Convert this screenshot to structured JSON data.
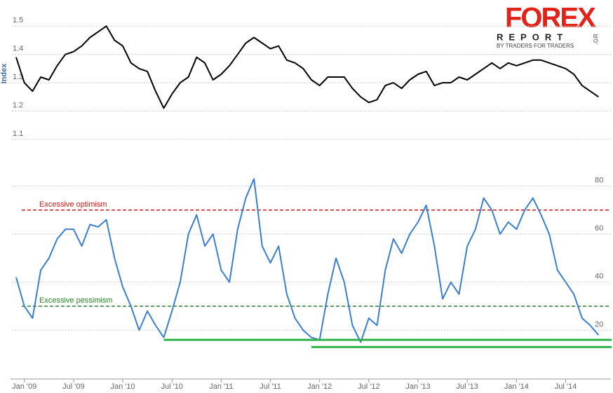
{
  "logo": {
    "title": "FOREX",
    "subtitle": "REPORT",
    "tagline": "BY TRADERS FOR TRADERS",
    "domain": ".GR"
  },
  "chart_data": [
    {
      "type": "line",
      "y_label": "Index",
      "color": "#000000",
      "grid": true,
      "ylim": [
        1.06,
        1.58
      ],
      "yticks": [
        1.1,
        1.2,
        1.3,
        1.4,
        1.5
      ],
      "xlim": [
        "2008-12",
        "2014-12"
      ],
      "x": [
        "2008-12",
        "2009-01",
        "2009-02",
        "2009-03",
        "2009-04",
        "2009-05",
        "2009-06",
        "2009-07",
        "2009-08",
        "2009-09",
        "2009-10",
        "2009-11",
        "2009-12",
        "2010-01",
        "2010-02",
        "2010-03",
        "2010-04",
        "2010-05",
        "2010-06",
        "2010-07",
        "2010-08",
        "2010-09",
        "2010-10",
        "2010-11",
        "2010-12",
        "2011-01",
        "2011-02",
        "2011-03",
        "2011-04",
        "2011-05",
        "2011-06",
        "2011-07",
        "2011-08",
        "2011-09",
        "2011-10",
        "2011-11",
        "2011-12",
        "2012-01",
        "2012-02",
        "2012-03",
        "2012-04",
        "2012-05",
        "2012-06",
        "2012-07",
        "2012-08",
        "2012-09",
        "2012-10",
        "2012-11",
        "2012-12",
        "2013-01",
        "2013-02",
        "2013-03",
        "2013-04",
        "2013-05",
        "2013-06",
        "2013-07",
        "2013-08",
        "2013-09",
        "2013-10",
        "2013-11",
        "2013-12",
        "2014-01",
        "2014-02",
        "2014-03",
        "2014-04",
        "2014-05",
        "2014-06",
        "2014-07",
        "2014-08",
        "2014-09",
        "2014-10",
        "2014-11"
      ],
      "values": [
        1.39,
        1.3,
        1.27,
        1.32,
        1.31,
        1.36,
        1.4,
        1.41,
        1.43,
        1.46,
        1.48,
        1.5,
        1.45,
        1.43,
        1.37,
        1.35,
        1.34,
        1.27,
        1.21,
        1.26,
        1.3,
        1.32,
        1.39,
        1.37,
        1.31,
        1.33,
        1.36,
        1.4,
        1.44,
        1.46,
        1.44,
        1.42,
        1.43,
        1.38,
        1.37,
        1.35,
        1.31,
        1.29,
        1.32,
        1.32,
        1.32,
        1.28,
        1.25,
        1.23,
        1.24,
        1.29,
        1.3,
        1.28,
        1.31,
        1.33,
        1.34,
        1.29,
        1.3,
        1.3,
        1.32,
        1.31,
        1.33,
        1.35,
        1.37,
        1.35,
        1.37,
        1.36,
        1.37,
        1.38,
        1.38,
        1.37,
        1.36,
        1.35,
        1.33,
        1.29,
        1.27,
        1.25
      ]
    },
    {
      "type": "line",
      "color": "#3a7fcf",
      "grid": true,
      "ylim": [
        0,
        86
      ],
      "yticks": [
        20,
        40,
        60,
        80
      ],
      "xlim": [
        "2008-12",
        "2014-12"
      ],
      "xticks": [
        {
          "value": "2009-01",
          "label": "Jan '09"
        },
        {
          "value": "2009-07",
          "label": "Jul '09"
        },
        {
          "value": "2010-01",
          "label": "Jan '10"
        },
        {
          "value": "2010-07",
          "label": "Jul '10"
        },
        {
          "value": "2011-01",
          "label": "Jan '11"
        },
        {
          "value": "2011-07",
          "label": "Jul '11"
        },
        {
          "value": "2012-01",
          "label": "Jan '12"
        },
        {
          "value": "2012-07",
          "label": "Jul '12"
        },
        {
          "value": "2013-01",
          "label": "Jan '13"
        },
        {
          "value": "2013-07",
          "label": "Jul '13"
        },
        {
          "value": "2014-01",
          "label": "Jan '14"
        },
        {
          "value": "2014-07",
          "label": "Jul '14"
        }
      ],
      "reference_lines": [
        {
          "label": "Excessive optimism",
          "value": 70,
          "color": "#dd1111"
        },
        {
          "label": "Excessive pessimism",
          "value": 30,
          "color": "#228822"
        }
      ],
      "support_lines": [
        {
          "value": 16,
          "from": "2010-06",
          "color": "#2db24a"
        },
        {
          "value": 13,
          "from": "2011-12",
          "color": "#2db24a"
        }
      ],
      "x": [
        "2008-12",
        "2009-01",
        "2009-02",
        "2009-03",
        "2009-04",
        "2009-05",
        "2009-06",
        "2009-07",
        "2009-08",
        "2009-09",
        "2009-10",
        "2009-11",
        "2009-12",
        "2010-01",
        "2010-02",
        "2010-03",
        "2010-04",
        "2010-05",
        "2010-06",
        "2010-07",
        "2010-08",
        "2010-09",
        "2010-10",
        "2010-11",
        "2010-12",
        "2011-01",
        "2011-02",
        "2011-03",
        "2011-04",
        "2011-05",
        "2011-06",
        "2011-07",
        "2011-08",
        "2011-09",
        "2011-10",
        "2011-11",
        "2011-12",
        "2012-01",
        "2012-02",
        "2012-03",
        "2012-04",
        "2012-05",
        "2012-06",
        "2012-07",
        "2012-08",
        "2012-09",
        "2012-10",
        "2012-11",
        "2012-12",
        "2013-01",
        "2013-02",
        "2013-03",
        "2013-04",
        "2013-05",
        "2013-06",
        "2013-07",
        "2013-08",
        "2013-09",
        "2013-10",
        "2013-11",
        "2013-12",
        "2014-01",
        "2014-02",
        "2014-03",
        "2014-04",
        "2014-05",
        "2014-06",
        "2014-07",
        "2014-08",
        "2014-09",
        "2014-10",
        "2014-11"
      ],
      "values": [
        42,
        30,
        25,
        45,
        50,
        58,
        62,
        62,
        55,
        64,
        63,
        66,
        50,
        38,
        30,
        20,
        28,
        22,
        17,
        28,
        40,
        60,
        68,
        55,
        60,
        45,
        40,
        62,
        75,
        83,
        55,
        48,
        55,
        35,
        25,
        20,
        17,
        16,
        35,
        50,
        40,
        22,
        15,
        25,
        22,
        45,
        58,
        52,
        60,
        65,
        72,
        55,
        33,
        40,
        35,
        55,
        62,
        75,
        70,
        60,
        65,
        62,
        70,
        75,
        68,
        60,
        45,
        40,
        35,
        25,
        22,
        18
      ]
    }
  ]
}
